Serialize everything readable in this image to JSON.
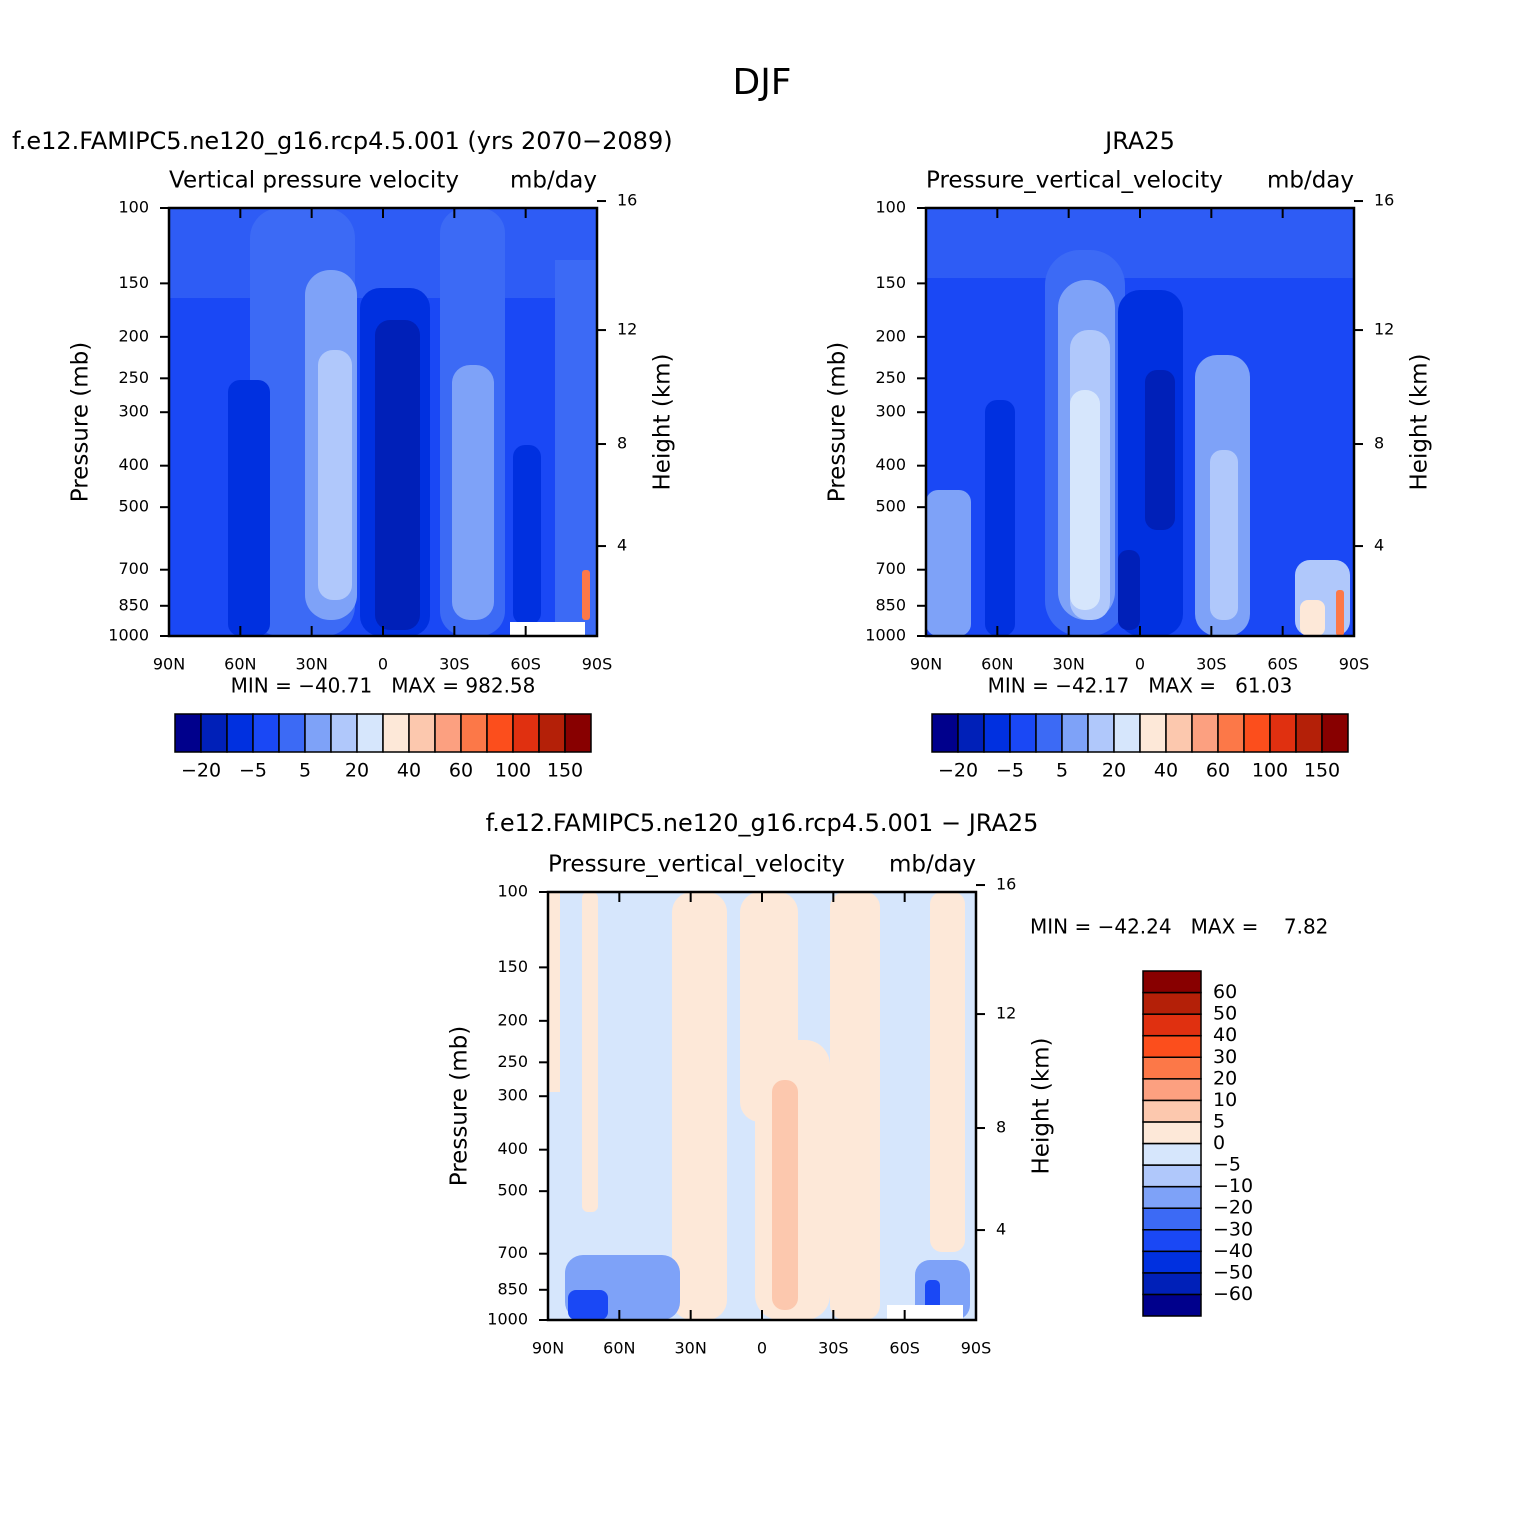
{
  "title": "DJF",
  "panels": [
    {
      "chart_data": {
        "type": "contour",
        "subtitle": "f.e12.FAMIPC5.ne120_g16.rcp4.5.001 (yrs 2070−2089)",
        "title": "Vertical pressure velocity",
        "units": "mb/day",
        "ylabel": "Pressure (mb)",
        "y2label": "Height (km)",
        "stats": "MIN = −40.71   MAX = 982.58",
        "xlim": [
          90,
          -90
        ],
        "xticks": [
          {
            "value": 90,
            "label": "90N"
          },
          {
            "value": 60,
            "label": "60N"
          },
          {
            "value": 30,
            "label": "30N"
          },
          0,
          {
            "value": -30,
            "label": "30S"
          },
          {
            "value": -60,
            "label": "60S"
          },
          {
            "value": -90,
            "label": "90S"
          }
        ],
        "ylim": [
          1000,
          100
        ],
        "log_y": true,
        "yticks": [
          100,
          150,
          200,
          250,
          300,
          400,
          500,
          700,
          850,
          1000
        ],
        "y2ticks": [
          16,
          12,
          8,
          4
        ],
        "colorbar": {
          "orientation": "horizontal",
          "labels": [
            {
              "value": -20,
              "label": "−20"
            },
            {
              "value": -5,
              "label": "−5"
            },
            5,
            20,
            40,
            60,
            100,
            150
          ],
          "colors": [
            "#00008c",
            "#0020b8",
            "#0030e0",
            "#1a48f5",
            "#3c6af5",
            "#7ea2f8",
            "#b0c8fb",
            "#d6e6fc",
            "#fde8d8",
            "#fcc8ae",
            "#fca080",
            "#fc7848",
            "#fc4e1c",
            "#e03010",
            "#b42008",
            "#880000"
          ]
        }
      }
    },
    {
      "chart_data": {
        "type": "contour",
        "subtitle": "JRA25",
        "title": "Pressure_vertical_velocity",
        "units": "mb/day",
        "ylabel": "Pressure (mb)",
        "y2label": "Height (km)",
        "stats": "MIN = −42.17   MAX =   61.03",
        "xlim": [
          90,
          -90
        ],
        "xticks": [
          {
            "value": 90,
            "label": "90N"
          },
          {
            "value": 60,
            "label": "60N"
          },
          {
            "value": 30,
            "label": "30N"
          },
          0,
          {
            "value": -30,
            "label": "30S"
          },
          {
            "value": -60,
            "label": "60S"
          },
          {
            "value": -90,
            "label": "90S"
          }
        ],
        "ylim": [
          1000,
          100
        ],
        "log_y": true,
        "yticks": [
          100,
          150,
          200,
          250,
          300,
          400,
          500,
          700,
          850,
          1000
        ],
        "y2ticks": [
          16,
          12,
          8,
          4
        ],
        "colorbar": {
          "orientation": "horizontal",
          "labels": [
            {
              "value": -20,
              "label": "−20"
            },
            {
              "value": -5,
              "label": "−5"
            },
            5,
            20,
            40,
            60,
            100,
            150
          ],
          "colors": [
            "#00008c",
            "#0020b8",
            "#0030e0",
            "#1a48f5",
            "#3c6af5",
            "#7ea2f8",
            "#b0c8fb",
            "#d6e6fc",
            "#fde8d8",
            "#fcc8ae",
            "#fca080",
            "#fc7848",
            "#fc4e1c",
            "#e03010",
            "#b42008",
            "#880000"
          ]
        }
      }
    },
    {
      "chart_data": {
        "type": "contour",
        "subtitle": "f.e12.FAMIPC5.ne120_g16.rcp4.5.001 − JRA25",
        "title": "Pressure_vertical_velocity",
        "units": "mb/day",
        "ylabel": "Pressure (mb)",
        "y2label": "Height (km)",
        "stats": "MIN = −42.24   MAX =    7.82",
        "xlim": [
          90,
          -90
        ],
        "xticks": [
          {
            "value": 90,
            "label": "90N"
          },
          {
            "value": 60,
            "label": "60N"
          },
          {
            "value": 30,
            "label": "30N"
          },
          0,
          {
            "value": -30,
            "label": "30S"
          },
          {
            "value": -60,
            "label": "60S"
          },
          {
            "value": -90,
            "label": "90S"
          }
        ],
        "ylim": [
          1000,
          100
        ],
        "log_y": true,
        "yticks": [
          100,
          150,
          200,
          250,
          300,
          400,
          500,
          700,
          850,
          1000
        ],
        "y2ticks": [
          16,
          12,
          8,
          4
        ],
        "colorbar": {
          "orientation": "vertical",
          "labels": [
            60,
            50,
            40,
            30,
            20,
            10,
            5,
            0,
            {
              "value": -5,
              "label": "−5"
            },
            {
              "value": -10,
              "label": "−10"
            },
            {
              "value": -20,
              "label": "−20"
            },
            {
              "value": -30,
              "label": "−30"
            },
            {
              "value": -40,
              "label": "−40"
            },
            {
              "value": -50,
              "label": "−50"
            },
            {
              "value": -60,
              "label": "−60"
            }
          ],
          "colors": [
            "#00008c",
            "#0020b8",
            "#0030e0",
            "#1a48f5",
            "#3c6af5",
            "#7ea2f8",
            "#b0c8fb",
            "#d6e6fc",
            "#fde8d8",
            "#fcc8ae",
            "#fca080",
            "#fc7848",
            "#fc4e1c",
            "#e03010",
            "#b42008",
            "#880000"
          ]
        }
      }
    }
  ]
}
